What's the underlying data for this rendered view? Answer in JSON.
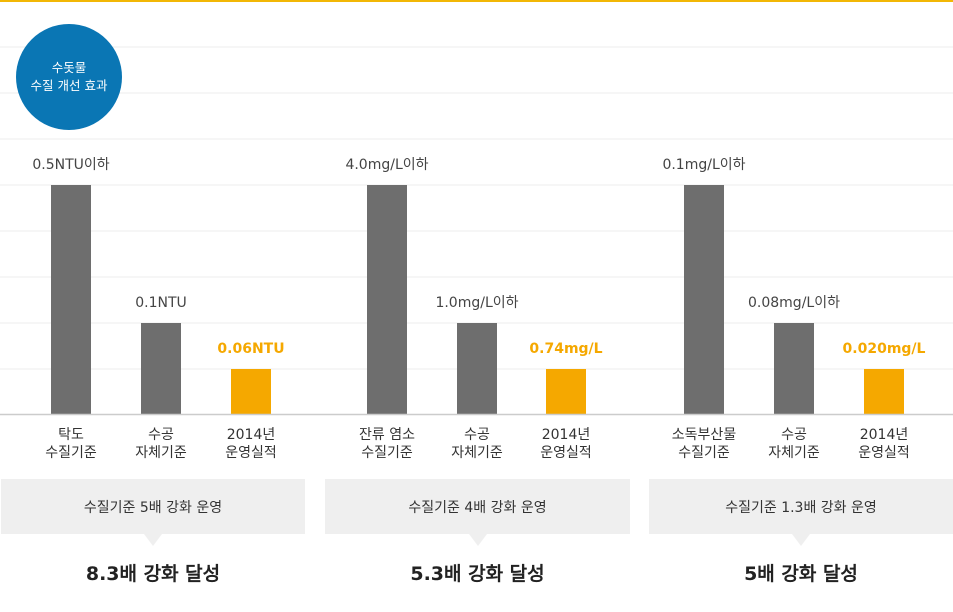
{
  "badge": {
    "line1": "수돗물",
    "line2": "수질 개선 효과"
  },
  "colors": {
    "standard": "#6e6e6e",
    "actual": "#f5a800",
    "badge": "#0a76b4",
    "axis": "#cccccc",
    "grid": "#eeeeee"
  },
  "chart_data": {
    "type": "bar",
    "groups": [
      {
        "name": "탁도 수질기준",
        "bars": [
          {
            "category": [
              "탁도",
              "수질기준"
            ],
            "value_label": "0.5NTU이하",
            "value": 0.5,
            "kind": "standard"
          },
          {
            "category": [
              "수공",
              "자체기준"
            ],
            "value_label": "0.1NTU",
            "value": 0.1,
            "kind": "standard"
          },
          {
            "category": [
              "2014년",
              "운영실적"
            ],
            "value_label": "0.06NTU",
            "value": 0.06,
            "kind": "actual"
          }
        ],
        "summary": "수질기준 5배 강화 운영",
        "result": "8.3배 강화 달성"
      },
      {
        "name": "잔류 염소 수질기준",
        "bars": [
          {
            "category": [
              "잔류 염소",
              "수질기준"
            ],
            "value_label": "4.0mg/L이하",
            "value": 4.0,
            "kind": "standard"
          },
          {
            "category": [
              "수공",
              "자체기준"
            ],
            "value_label": "1.0mg/L이하",
            "value": 1.0,
            "kind": "standard"
          },
          {
            "category": [
              "2014년",
              "운영실적"
            ],
            "value_label": "0.74mg/L",
            "value": 0.74,
            "kind": "actual"
          }
        ],
        "summary": "수질기준 4배 강화 운영",
        "result": "5.3배 강화 달성"
      },
      {
        "name": "소독부산물 수질기준",
        "bars": [
          {
            "category": [
              "소독부산물",
              "수질기준"
            ],
            "value_label": "0.1mg/L이하",
            "value": 0.1,
            "kind": "standard"
          },
          {
            "category": [
              "수공",
              "자체기준"
            ],
            "value_label": "0.08mg/L이하",
            "value": 0.08,
            "kind": "standard"
          },
          {
            "category": [
              "2014년",
              "운영실적"
            ],
            "value_label": "0.020mg/L",
            "value": 0.02,
            "kind": "actual"
          }
        ],
        "summary": "수질기준 1.3배 강화 운영",
        "result": "5배 강화 달성"
      }
    ]
  }
}
